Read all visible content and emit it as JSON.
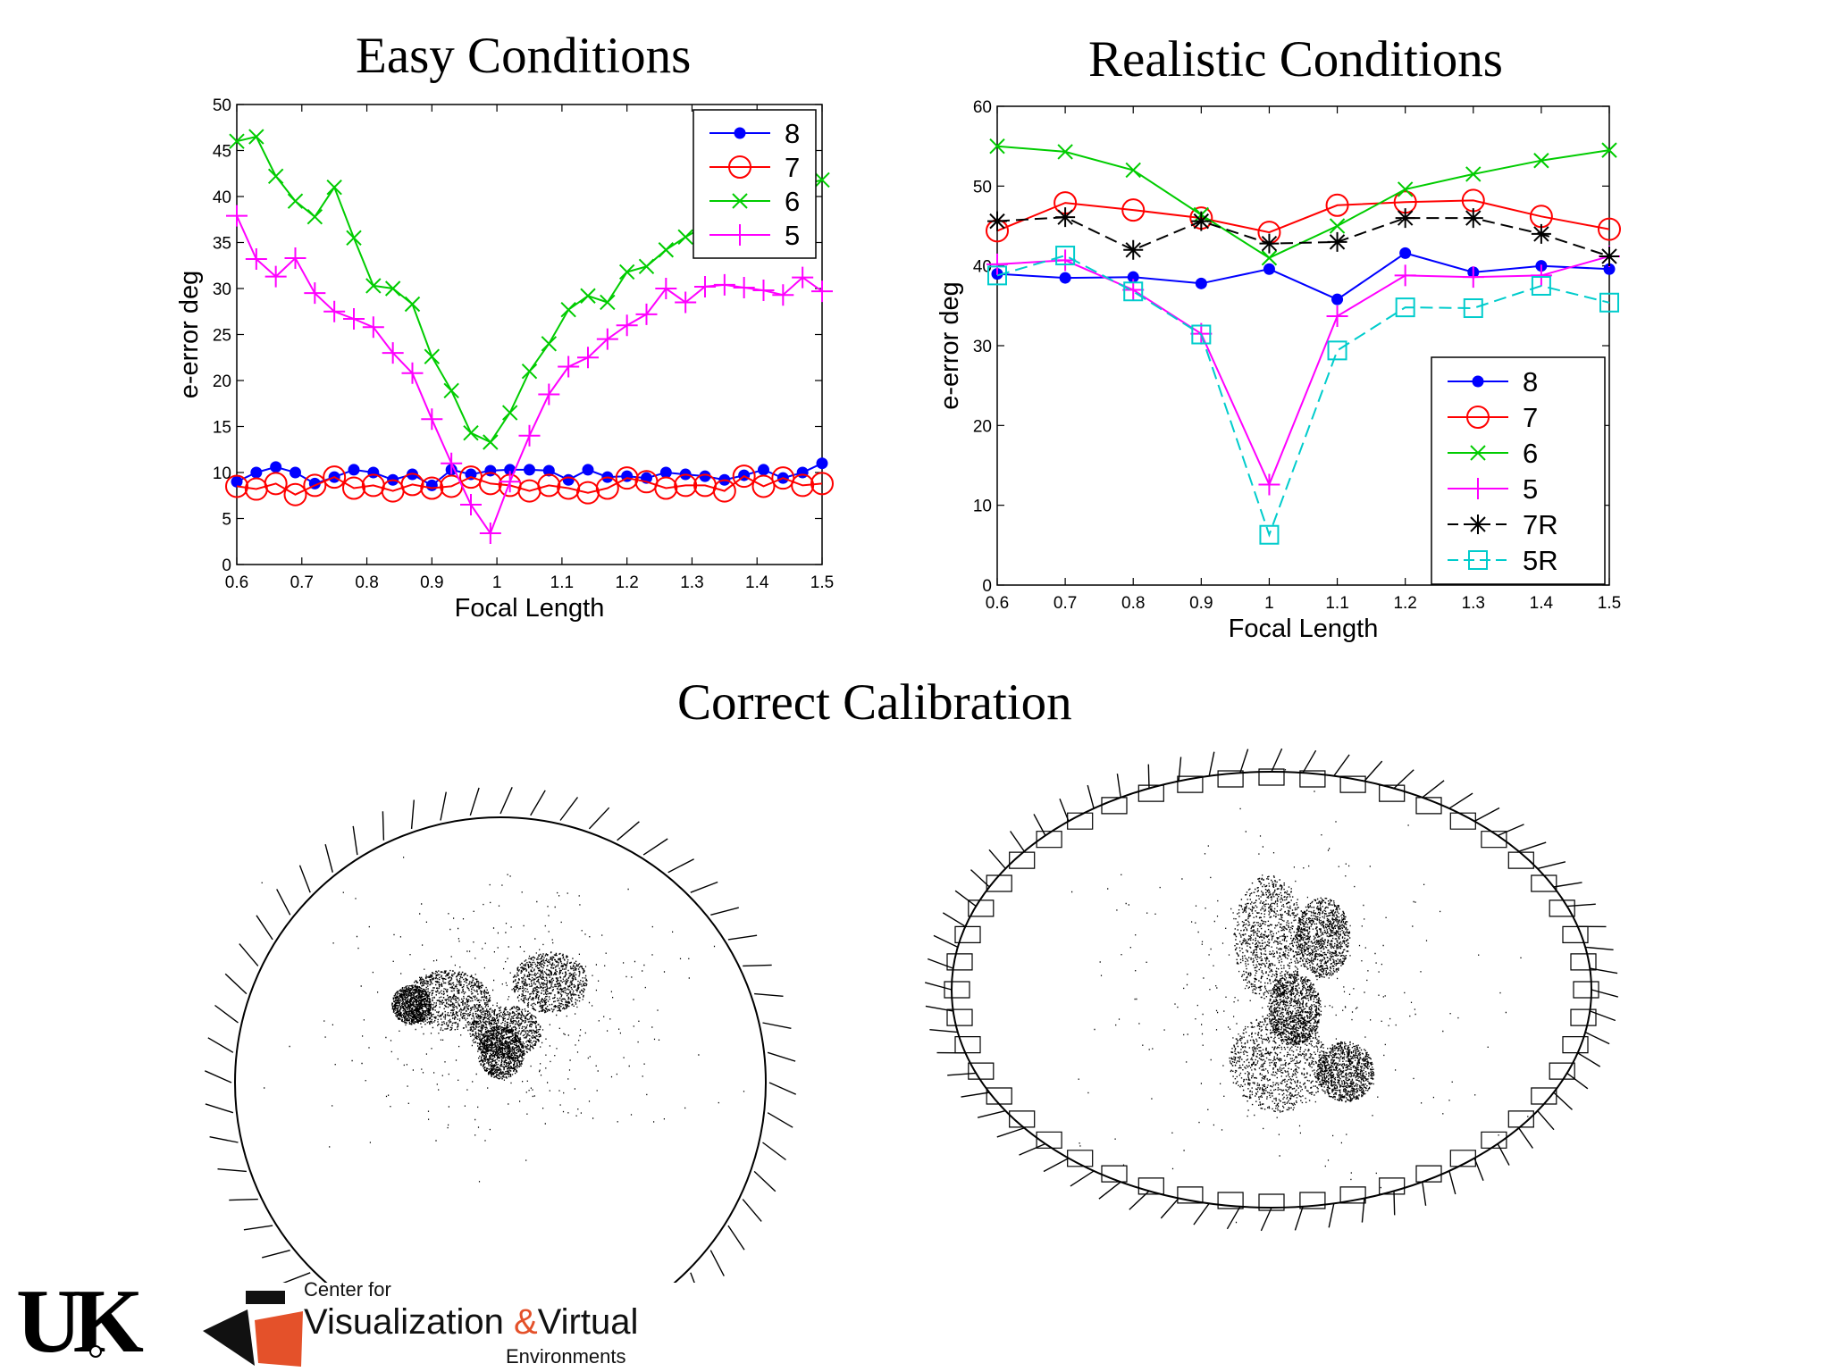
{
  "titles": {
    "easy": "Easy Conditions",
    "realistic": "Realistic Conditions",
    "calibration": "Correct Calibration"
  },
  "footer": {
    "uk_logo": "UK",
    "center_line1": "Center for",
    "center_line2_a": "Visualization",
    "center_line2_amp": "&",
    "center_line2_b": "Virtual",
    "center_line3": "Environments",
    "accent_color": "#e4512a"
  },
  "chart_data": [
    {
      "type": "line",
      "title": "Easy Conditions",
      "xlabel": "Focal Length",
      "ylabel": "e-error deg",
      "xlim": [
        0.6,
        1.5
      ],
      "ylim": [
        0,
        50
      ],
      "xticks": [
        "0.6",
        "0.7",
        "0.8",
        "0.9",
        "1",
        "1.1",
        "1.2",
        "1.3",
        "1.4",
        "1.5"
      ],
      "yticks": [
        "0",
        "5",
        "10",
        "15",
        "20",
        "25",
        "30",
        "35",
        "40",
        "45",
        "50"
      ],
      "legend_position": "top-right",
      "x": [
        0.6,
        0.63,
        0.66,
        0.69,
        0.72,
        0.75,
        0.78,
        0.81,
        0.84,
        0.87,
        0.9,
        0.93,
        0.96,
        0.99,
        1.02,
        1.05,
        1.08,
        1.11,
        1.14,
        1.17,
        1.2,
        1.23,
        1.26,
        1.29,
        1.32,
        1.35,
        1.38,
        1.41,
        1.44,
        1.47,
        1.5
      ],
      "series": [
        {
          "name": "8",
          "color": "#0000ff",
          "marker": "dot",
          "dash": "",
          "values": [
            9.0,
            10.0,
            10.6,
            10.0,
            8.8,
            9.5,
            10.3,
            10.0,
            9.2,
            9.8,
            8.6,
            10.3,
            9.8,
            10.2,
            10.3,
            10.3,
            10.2,
            9.2,
            10.3,
            9.5,
            9.6,
            9.4,
            10.0,
            9.8,
            9.6,
            9.2,
            9.7,
            10.3,
            9.4,
            10.0,
            11.0
          ]
        },
        {
          "name": "7",
          "color": "#ff0000",
          "marker": "circle",
          "dash": "",
          "values": [
            8.5,
            8.2,
            8.8,
            7.6,
            8.6,
            9.5,
            8.3,
            8.6,
            8.0,
            8.7,
            8.3,
            8.5,
            9.5,
            8.8,
            8.6,
            8.0,
            8.6,
            8.3,
            7.8,
            8.3,
            9.4,
            9.0,
            8.3,
            8.6,
            8.6,
            8.0,
            9.6,
            8.5,
            9.4,
            8.6,
            8.8
          ]
        },
        {
          "name": "6",
          "color": "#00cc00",
          "marker": "x",
          "dash": "",
          "values": [
            46.0,
            46.5,
            42.2,
            39.5,
            37.8,
            41.0,
            35.5,
            30.3,
            30.0,
            28.3,
            22.6,
            18.9,
            14.3,
            13.3,
            16.5,
            21.0,
            24.0,
            27.7,
            29.2,
            28.5,
            31.8,
            32.4,
            34.2,
            35.6,
            36.8,
            37.5,
            38.6,
            39.5,
            40.5,
            41.3,
            41.8
          ]
        },
        {
          "name": "5",
          "color": "#ff00ff",
          "marker": "plus",
          "dash": "",
          "values": [
            37.9,
            33.2,
            31.3,
            33.3,
            29.5,
            27.5,
            26.7,
            25.8,
            23.0,
            20.8,
            15.8,
            11.0,
            6.5,
            3.4,
            9.0,
            14.0,
            18.5,
            21.5,
            22.5,
            24.5,
            26.0,
            27.2,
            30.0,
            28.5,
            30.2,
            30.4,
            30.1,
            29.8,
            29.3,
            31.2,
            29.7
          ]
        }
      ]
    },
    {
      "type": "line",
      "title": "Realistic Conditions",
      "xlabel": "Focal Length",
      "ylabel": "e-error deg",
      "xlim": [
        0.6,
        1.5
      ],
      "ylim": [
        0,
        60
      ],
      "xticks": [
        "0.6",
        "0.7",
        "0.8",
        "0.9",
        "1",
        "1.1",
        "1.2",
        "1.3",
        "1.4",
        "1.5"
      ],
      "yticks": [
        "0",
        "10",
        "20",
        "30",
        "40",
        "50",
        "60"
      ],
      "legend_position": "bottom-right",
      "x": [
        0.6,
        0.7,
        0.8,
        0.9,
        1.0,
        1.1,
        1.2,
        1.3,
        1.4,
        1.5
      ],
      "series": [
        {
          "name": "8",
          "color": "#0000ff",
          "marker": "dot",
          "dash": "",
          "values": [
            39.0,
            38.5,
            38.6,
            37.8,
            39.6,
            35.8,
            41.6,
            39.2,
            40.0,
            39.6
          ]
        },
        {
          "name": "7",
          "color": "#ff0000",
          "marker": "circle",
          "dash": "",
          "values": [
            44.4,
            47.9,
            47.0,
            46.0,
            44.2,
            47.6,
            48.0,
            48.2,
            46.2,
            44.6
          ]
        },
        {
          "name": "6",
          "color": "#00cc00",
          "marker": "x",
          "dash": "",
          "values": [
            55.0,
            54.3,
            52.0,
            46.4,
            41.0,
            45.0,
            49.6,
            51.5,
            53.2,
            54.5
          ]
        },
        {
          "name": "5",
          "color": "#ff00ff",
          "marker": "plus",
          "dash": "",
          "values": [
            40.2,
            40.7,
            37.0,
            31.5,
            12.6,
            33.7,
            38.8,
            38.6,
            38.8,
            41.2
          ]
        },
        {
          "name": "7R",
          "color": "#000000",
          "marker": "star",
          "dash": "14,7",
          "values": [
            45.6,
            46.1,
            42.0,
            45.6,
            42.8,
            43.0,
            46.0,
            46.0,
            44.0,
            41.2
          ]
        },
        {
          "name": "5R",
          "color": "#00cccc",
          "marker": "square",
          "dash": "14,7",
          "values": [
            38.8,
            41.3,
            36.8,
            31.4,
            6.3,
            29.4,
            34.8,
            34.7,
            37.5,
            35.4
          ]
        }
      ]
    }
  ]
}
